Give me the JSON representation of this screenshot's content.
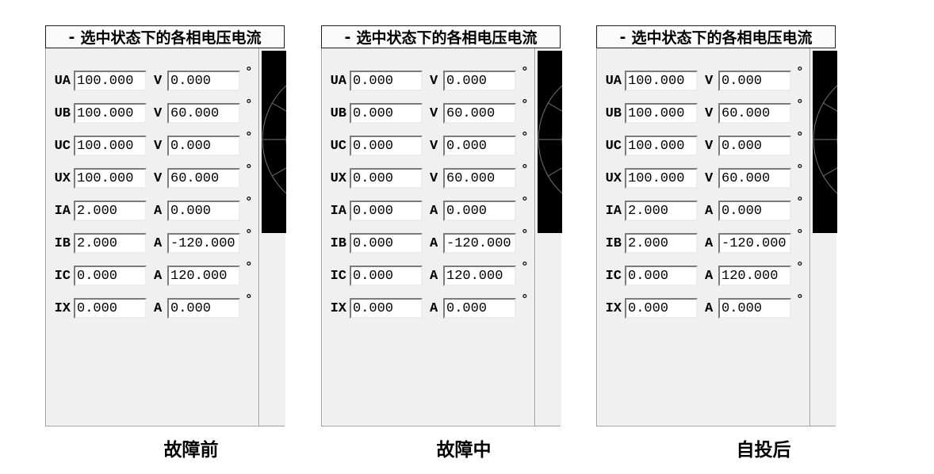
{
  "ui": {
    "degree_symbol": "°"
  },
  "panels": [
    {
      "collapse_indicator": "-",
      "title": "选中状态下的各相电压电流",
      "caption": "故障前",
      "rows": [
        {
          "label": "UA",
          "value": "100.000",
          "unit": "V",
          "angle": "0.000"
        },
        {
          "label": "UB",
          "value": "100.000",
          "unit": "V",
          "angle": "60.000"
        },
        {
          "label": "UC",
          "value": "100.000",
          "unit": "V",
          "angle": "0.000"
        },
        {
          "label": "UX",
          "value": "100.000",
          "unit": "V",
          "angle": "60.000"
        },
        {
          "label": "IA",
          "value": "2.000",
          "unit": "A",
          "angle": "0.000"
        },
        {
          "label": "IB",
          "value": "2.000",
          "unit": "A",
          "angle": "-120.000"
        },
        {
          "label": "IC",
          "value": "0.000",
          "unit": "A",
          "angle": "120.000"
        },
        {
          "label": "IX",
          "value": "0.000",
          "unit": "A",
          "angle": "0.000"
        }
      ]
    },
    {
      "collapse_indicator": "-",
      "title": "选中状态下的各相电压电流",
      "caption": "故障中",
      "rows": [
        {
          "label": "UA",
          "value": "0.000",
          "unit": "V",
          "angle": "0.000"
        },
        {
          "label": "UB",
          "value": "0.000",
          "unit": "V",
          "angle": "60.000"
        },
        {
          "label": "UC",
          "value": "0.000",
          "unit": "V",
          "angle": "0.000"
        },
        {
          "label": "UX",
          "value": "0.000",
          "unit": "V",
          "angle": "60.000"
        },
        {
          "label": "IA",
          "value": "0.000",
          "unit": "A",
          "angle": "0.000"
        },
        {
          "label": "IB",
          "value": "0.000",
          "unit": "A",
          "angle": "-120.000"
        },
        {
          "label": "IC",
          "value": "0.000",
          "unit": "A",
          "angle": "120.000"
        },
        {
          "label": "IX",
          "value": "0.000",
          "unit": "A",
          "angle": "0.000"
        }
      ]
    },
    {
      "collapse_indicator": "-",
      "title": "选中状态下的各相电压电流",
      "caption": "自投后",
      "rows": [
        {
          "label": "UA",
          "value": "100.000",
          "unit": "V",
          "angle": "0.000"
        },
        {
          "label": "UB",
          "value": "100.000",
          "unit": "V",
          "angle": "60.000"
        },
        {
          "label": "UC",
          "value": "100.000",
          "unit": "V",
          "angle": "0.000"
        },
        {
          "label": "UX",
          "value": "100.000",
          "unit": "V",
          "angle": "60.000"
        },
        {
          "label": "IA",
          "value": "2.000",
          "unit": "A",
          "angle": "0.000"
        },
        {
          "label": "IB",
          "value": "2.000",
          "unit": "A",
          "angle": "-120.000"
        },
        {
          "label": "IC",
          "value": "0.000",
          "unit": "A",
          "angle": "120.000"
        },
        {
          "label": "IX",
          "value": "0.000",
          "unit": "A",
          "angle": "0.000"
        }
      ]
    }
  ],
  "colors": {
    "page_bg": "#ffffff",
    "panel_bg": "#f0f0f0",
    "header_bg": "#fbfbfb",
    "field_bg": "#ffffff",
    "phasor_bg": "#000000",
    "phasor_grid": "#747474",
    "text": "#000000"
  }
}
